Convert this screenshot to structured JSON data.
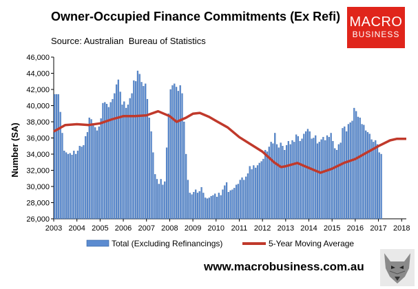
{
  "title": "Owner-Occupied Finance Commitments (Ex Refi)",
  "subtitle": "Source: Australian  Bureau of Statistics",
  "logo": {
    "line1": "MACRO",
    "line2": "BUSINESS"
  },
  "website": "www.macrobusiness.com.au",
  "colors": {
    "bar": "#5b8bd0",
    "bar_edge": "#2f5f9f",
    "line": "#c0392b",
    "logo_bg": "#e0251b"
  },
  "icons": {
    "wolf": "wolf-logo-icon"
  },
  "chart_data": {
    "type": "bar",
    "title": "Owner-Occupied Finance Commitments (Ex Refi)",
    "xlabel": "",
    "ylabel": "Number (SA)",
    "ylim": [
      26000,
      46000
    ],
    "yticks": [
      "26,000",
      "28,000",
      "30,000",
      "32,000",
      "34,000",
      "36,000",
      "38,000",
      "40,000",
      "42,000",
      "44,000",
      "46,000"
    ],
    "xticks": [
      "2003",
      "2004",
      "2005",
      "2006",
      "2007",
      "2008",
      "2009",
      "2010",
      "2011",
      "2012",
      "2013",
      "2014",
      "2015",
      "2016",
      "2017",
      "2018"
    ],
    "xrange": [
      2003.0,
      2018.2
    ],
    "grid": false,
    "legend_position": "bottom",
    "series": [
      {
        "name": "Total (Excluding Refinancings)",
        "type": "bar",
        "x_start": 2003.0,
        "step_years": 0.08333,
        "values": [
          41400,
          41400,
          41400,
          39200,
          36600,
          34400,
          34200,
          34000,
          34100,
          33900,
          34400,
          34000,
          34400,
          35000,
          34900,
          35100,
          36200,
          36700,
          38500,
          38300,
          37800,
          37300,
          36900,
          37400,
          38400,
          40300,
          40400,
          40200,
          39800,
          40400,
          40800,
          41500,
          42600,
          43200,
          41700,
          40100,
          40500,
          39700,
          40100,
          40900,
          41500,
          43100,
          43000,
          44300,
          43900,
          42900,
          42400,
          42700,
          40800,
          38500,
          36800,
          34200,
          31500,
          30900,
          30300,
          30900,
          30200,
          30600,
          34800,
          39000,
          42000,
          42500,
          42700,
          42300,
          41800,
          42500,
          41500,
          38000,
          34000,
          30800,
          29200,
          29000,
          29300,
          29600,
          29200,
          29400,
          29900,
          29200,
          28600,
          28500,
          28600,
          28800,
          28900,
          29100,
          28700,
          29200,
          28900,
          29600,
          30100,
          30500,
          29300,
          29500,
          29600,
          29800,
          30200,
          30300,
          30800,
          31100,
          30800,
          31200,
          31600,
          32500,
          32100,
          32600,
          32300,
          32600,
          32900,
          33100,
          33400,
          34500,
          34300,
          34900,
          35500,
          35300,
          36600,
          35200,
          34800,
          35400,
          35000,
          34500,
          35100,
          35600,
          35200,
          35700,
          35500,
          36400,
          36200,
          35600,
          35900,
          36500,
          36800,
          37100,
          36800,
          35900,
          36000,
          36300,
          35300,
          35500,
          35800,
          36100,
          35700,
          36300,
          36100,
          36600,
          35600,
          34700,
          34500,
          35200,
          35400,
          37200,
          37400,
          36800,
          37700,
          37900,
          38100,
          39700,
          39300,
          38600,
          38500,
          37700,
          37600,
          36900,
          36700,
          36500,
          35800,
          35500,
          35700,
          35200,
          34200,
          34000
        ]
      },
      {
        "name": "5-Year Moving Average",
        "type": "line",
        "points": [
          [
            2003.0,
            36800
          ],
          [
            2003.5,
            37600
          ],
          [
            2004.0,
            37700
          ],
          [
            2004.5,
            37600
          ],
          [
            2005.0,
            37800
          ],
          [
            2005.5,
            38300
          ],
          [
            2006.0,
            38700
          ],
          [
            2006.5,
            38700
          ],
          [
            2007.0,
            38800
          ],
          [
            2007.5,
            39300
          ],
          [
            2008.0,
            38700
          ],
          [
            2008.3,
            38000
          ],
          [
            2008.7,
            38500
          ],
          [
            2009.0,
            39000
          ],
          [
            2009.3,
            39100
          ],
          [
            2009.7,
            38600
          ],
          [
            2010.0,
            38100
          ],
          [
            2010.5,
            37300
          ],
          [
            2011.0,
            36100
          ],
          [
            2011.5,
            35200
          ],
          [
            2012.0,
            34300
          ],
          [
            2012.5,
            33000
          ],
          [
            2012.8,
            32400
          ],
          [
            2013.0,
            32500
          ],
          [
            2013.5,
            32900
          ],
          [
            2014.0,
            32300
          ],
          [
            2014.5,
            31700
          ],
          [
            2015.0,
            32200
          ],
          [
            2015.5,
            32900
          ],
          [
            2016.0,
            33400
          ],
          [
            2016.5,
            34200
          ],
          [
            2017.0,
            35000
          ],
          [
            2017.5,
            35700
          ],
          [
            2017.8,
            35900
          ],
          [
            2018.2,
            35900
          ]
        ]
      }
    ]
  }
}
